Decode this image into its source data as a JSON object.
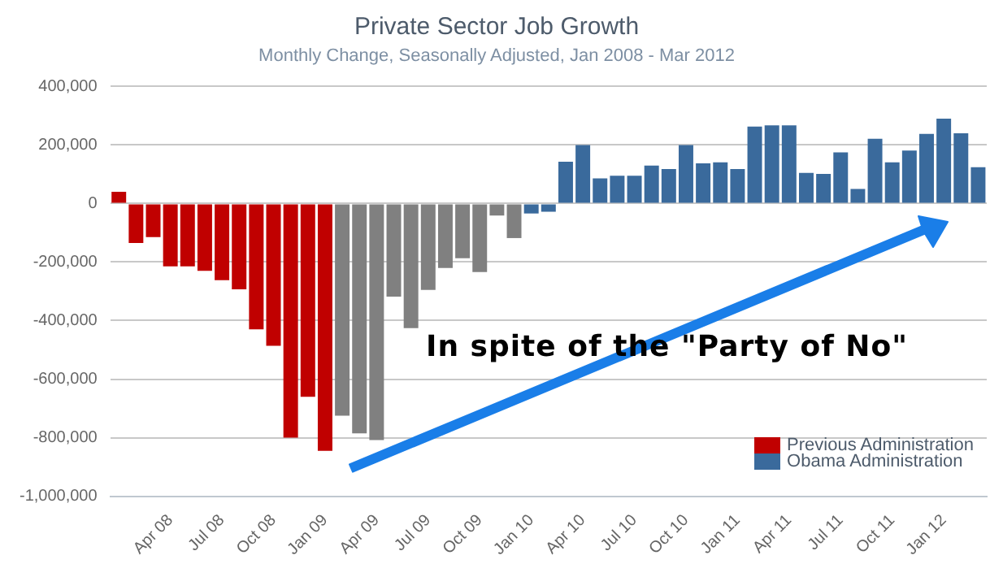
{
  "chart_data": {
    "type": "bar",
    "title": "Private Sector Job Growth",
    "subtitle": "Monthly Change, Seasonally Adjusted, Jan 2008 - Mar 2012",
    "categories": [
      null,
      null,
      null,
      "Apr 08",
      null,
      null,
      "Jul 08",
      null,
      null,
      "Oct 08",
      null,
      null,
      "Jan 09",
      null,
      null,
      "Apr 09",
      null,
      null,
      "Jul 09",
      null,
      null,
      "Oct 09",
      null,
      null,
      "Jan 10",
      null,
      null,
      "Apr 10",
      null,
      null,
      "Jul 10",
      null,
      null,
      "Oct 10",
      null,
      null,
      "Jan 11",
      null,
      null,
      "Apr 11",
      null,
      null,
      "Jul 11",
      null,
      null,
      "Oct 11",
      null,
      null,
      "Jan 12",
      null,
      null
    ],
    "series": [
      {
        "name": "Previous Administration",
        "color": "#c00000",
        "values": [
          40000,
          -135000,
          -115000,
          -215000,
          -215000,
          -230000,
          -262000,
          -293000,
          -430000,
          -486000,
          -800000,
          -660000,
          -845000,
          null,
          null,
          null,
          null,
          null,
          null,
          null,
          null,
          null,
          null,
          null,
          null,
          null,
          null,
          null,
          null,
          null,
          null,
          null,
          null,
          null,
          null,
          null,
          null,
          null,
          null,
          null,
          null,
          null,
          null,
          null,
          null,
          null,
          null,
          null,
          null,
          null,
          null
        ]
      },
      {
        "color": "#808080",
        "values": [
          null,
          null,
          null,
          null,
          null,
          null,
          null,
          null,
          null,
          null,
          null,
          null,
          null,
          -725000,
          -785000,
          -808000,
          -318000,
          -426000,
          -295000,
          -220000,
          -187000,
          -234000,
          -41000,
          -118000,
          null,
          null,
          null,
          null,
          null,
          null,
          null,
          null,
          null,
          null,
          null,
          null,
          null,
          null,
          null,
          null,
          null,
          null,
          null,
          null,
          null,
          null,
          null,
          null,
          null,
          null,
          null
        ]
      },
      {
        "name": "Obama Administration",
        "color": "#3a6a9c",
        "values": [
          null,
          null,
          null,
          null,
          null,
          null,
          null,
          null,
          null,
          null,
          null,
          null,
          null,
          null,
          null,
          null,
          null,
          null,
          null,
          null,
          null,
          null,
          null,
          null,
          -34000,
          -28000,
          143000,
          200000,
          86000,
          95000,
          95000,
          130000,
          118000,
          200000,
          137000,
          141000,
          118000,
          263000,
          267000,
          267000,
          105000,
          101000,
          175000,
          50000,
          221000,
          141000,
          181000,
          238000,
          290000,
          240000,
          124000
        ]
      }
    ],
    "ylim": [
      -1000000,
      400000
    ],
    "yticks": [
      {
        "value": -1000000,
        "label": "-1,000,000"
      },
      {
        "value": -800000,
        "label": "-800,000"
      },
      {
        "value": -600000,
        "label": "-600,000"
      },
      {
        "value": -400000,
        "label": "-400,000"
      },
      {
        "value": -200000,
        "label": "-200,000"
      },
      0,
      {
        "value": 200000,
        "label": "200,000"
      },
      {
        "value": 400000,
        "label": "400,000"
      }
    ],
    "grid": "y",
    "legend": "bottom right",
    "annotations": [
      "In spite of the \"Party of No\""
    ]
  }
}
